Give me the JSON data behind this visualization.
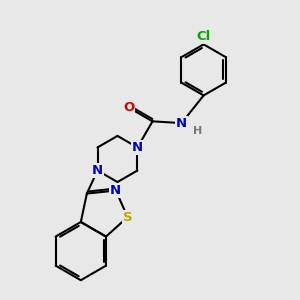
{
  "bg_color": "#e8e8e8",
  "bond_color": "#000000",
  "bond_width": 1.5,
  "dbo": 0.055,
  "atom_colors": {
    "C": "#000000",
    "N": "#0000cc",
    "O": "#dd0000",
    "S": "#bbaa00",
    "Cl": "#00aa00",
    "H": "#777777"
  },
  "fs": 9.5
}
